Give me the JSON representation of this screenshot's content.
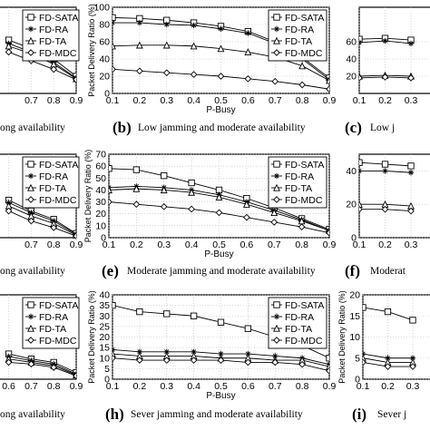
{
  "chart_data": [
    {
      "id": "a",
      "caption": "ong availability",
      "caption_letter": "",
      "type": "line",
      "ylabel": "",
      "xlabel": "",
      "ylim": [
        0,
        100
      ],
      "x": [
        0.6,
        0.7,
        0.8,
        0.9
      ],
      "xticks": [
        "",
        "0.7",
        "0.8",
        "0.9"
      ],
      "yticks": [],
      "legend": [
        "FD-SATA",
        "FD-RA",
        "FD-TA",
        "FD-MDC"
      ],
      "legend_partial": true,
      "series": [
        {
          "name": "FD-SATA",
          "marker": "square",
          "values": [
            62,
            52,
            40,
            20
          ]
        },
        {
          "name": "FD-RA",
          "marker": "star",
          "values": [
            58,
            48,
            36,
            18
          ]
        },
        {
          "name": "FD-TA",
          "marker": "triangle",
          "values": [
            55,
            46,
            34,
            17
          ]
        },
        {
          "name": "FD-MDC",
          "marker": "diamond",
          "values": [
            48,
            38,
            28,
            16
          ]
        }
      ]
    },
    {
      "id": "b",
      "caption": "Low jamming and moderate availability",
      "caption_letter": "(b)",
      "type": "line",
      "ylabel": "Packet Delivery Ratio (%)",
      "xlabel": "P-Busy",
      "ylim": [
        0,
        100
      ],
      "x": [
        0.1,
        0.2,
        0.3,
        0.4,
        0.5,
        0.6,
        0.7,
        0.8,
        0.9
      ],
      "xticks": [
        "0.1",
        "0.2",
        "0.3",
        "0.4",
        "0.5",
        "0.6",
        "0.7",
        "0.8",
        "0.9"
      ],
      "yticks": [
        "0",
        "20",
        "40",
        "60",
        "80",
        "100"
      ],
      "legend": [
        "FD-SATA",
        "FD-RA",
        "FD-TA",
        "FD-MDC"
      ],
      "series": [
        {
          "name": "FD-SATA",
          "marker": "square",
          "values": [
            88,
            87,
            85,
            82,
            78,
            72,
            60,
            42,
            18
          ]
        },
        {
          "name": "FD-RA",
          "marker": "star",
          "values": [
            82,
            82,
            80,
            79,
            75,
            70,
            58,
            40,
            16
          ]
        },
        {
          "name": "FD-TA",
          "marker": "triangle",
          "values": [
            55,
            56,
            56,
            55,
            52,
            48,
            42,
            32,
            15
          ]
        },
        {
          "name": "FD-MDC",
          "marker": "diamond",
          "values": [
            28,
            26,
            24,
            22,
            20,
            17,
            14,
            10,
            5
          ]
        }
      ]
    },
    {
      "id": "c",
      "caption": "Low j",
      "caption_letter": "(c)",
      "type": "line",
      "ylabel": "",
      "xlabel": "",
      "ylim": [
        0,
        100
      ],
      "x": [
        0.1,
        0.2,
        0.3
      ],
      "xticks": [
        "0.1",
        "0.2",
        "0.3"
      ],
      "yticks": [
        "20",
        "40",
        "60"
      ],
      "legend": [],
      "partial": true,
      "series": [
        {
          "name": "FD-SATA",
          "marker": "square",
          "values": [
            63,
            64,
            62
          ]
        },
        {
          "name": "FD-RA",
          "marker": "star",
          "values": [
            59,
            61,
            58
          ]
        },
        {
          "name": "FD-TA",
          "marker": "triangle",
          "values": [
            20,
            21,
            20
          ]
        },
        {
          "name": "FD-MDC",
          "marker": "diamond",
          "values": [
            18,
            19,
            18
          ]
        }
      ]
    },
    {
      "id": "d",
      "caption": "ong availability",
      "caption_letter": "",
      "type": "line",
      "ylabel": "",
      "xlabel": "",
      "ylim": [
        0,
        100
      ],
      "x": [
        0.6,
        0.7,
        0.8,
        0.9
      ],
      "xticks": [
        "",
        "0.7",
        "0.8",
        "0.9"
      ],
      "yticks": [],
      "legend": [
        "FD-SATA",
        "FD-RA",
        "FD-TA",
        "FD-MDC"
      ],
      "legend_partial": true,
      "series": [
        {
          "name": "FD-SATA",
          "marker": "square",
          "values": [
            45,
            32,
            22,
            5
          ]
        },
        {
          "name": "FD-RA",
          "marker": "star",
          "values": [
            42,
            30,
            20,
            4
          ]
        },
        {
          "name": "FD-TA",
          "marker": "triangle",
          "values": [
            38,
            26,
            17,
            3
          ]
        },
        {
          "name": "FD-MDC",
          "marker": "diamond",
          "values": [
            32,
            20,
            12,
            2
          ]
        }
      ]
    },
    {
      "id": "e",
      "caption": "Moderate jamming and moderate availability",
      "caption_letter": "(e)",
      "type": "line",
      "ylabel": "Packet Delivery Ratio (%)",
      "xlabel": "P-Busy",
      "ylim": [
        0,
        70
      ],
      "x": [
        0.1,
        0.2,
        0.3,
        0.4,
        0.5,
        0.6,
        0.7,
        0.8,
        0.9
      ],
      "xticks": [
        "0.1",
        "0.2",
        "0.3",
        "0.4",
        "0.5",
        "0.6",
        "0.7",
        "0.8",
        "0.9"
      ],
      "yticks": [
        "0",
        "10",
        "20",
        "30",
        "40",
        "50",
        "60",
        "70"
      ],
      "legend": [
        "FD-SATA",
        "FD-RA",
        "FD-TA",
        "FD-MDC"
      ],
      "series": [
        {
          "name": "FD-SATA",
          "marker": "square",
          "values": [
            58,
            57,
            52,
            46,
            40,
            33,
            25,
            16,
            7
          ]
        },
        {
          "name": "FD-RA",
          "marker": "star",
          "values": [
            42,
            43,
            42,
            40,
            36,
            30,
            23,
            15,
            6
          ]
        },
        {
          "name": "FD-TA",
          "marker": "triangle",
          "values": [
            40,
            41,
            40,
            38,
            34,
            28,
            21,
            14,
            6
          ]
        },
        {
          "name": "FD-MDC",
          "marker": "diamond",
          "values": [
            30,
            28,
            26,
            24,
            21,
            17,
            13,
            9,
            4
          ]
        }
      ]
    },
    {
      "id": "f",
      "caption": "Moderat",
      "caption_letter": "(f)",
      "type": "line",
      "ylabel": "",
      "xlabel": "",
      "ylim": [
        0,
        50
      ],
      "x": [
        0.1,
        0.2,
        0.3
      ],
      "xticks": [
        "0.1",
        "0.2",
        "0.3"
      ],
      "yticks": [
        "0",
        "20",
        "40"
      ],
      "legend": [],
      "partial": true,
      "series": [
        {
          "name": "FD-SATA",
          "marker": "square",
          "values": [
            45,
            44,
            43
          ]
        },
        {
          "name": "FD-RA",
          "marker": "star",
          "values": [
            40,
            40,
            39
          ]
        },
        {
          "name": "FD-TA",
          "marker": "triangle",
          "values": [
            20,
            20,
            19
          ]
        },
        {
          "name": "FD-MDC",
          "marker": "diamond",
          "values": [
            17,
            17,
            16
          ]
        }
      ]
    },
    {
      "id": "g",
      "caption": "ong availability",
      "caption_letter": "",
      "type": "line",
      "ylabel": "",
      "xlabel": "",
      "ylim": [
        0,
        100
      ],
      "x": [
        0.6,
        0.7,
        0.8,
        0.9
      ],
      "xticks": [
        "0.6",
        "0.7",
        "0.8",
        "0.9"
      ],
      "yticks": [],
      "legend": [
        "FD-SATA",
        "FD-RA",
        "FD-TA",
        "FD-MDC"
      ],
      "legend_partial": true,
      "series": [
        {
          "name": "FD-SATA",
          "marker": "square",
          "values": [
            30,
            24,
            20,
            8
          ]
        },
        {
          "name": "FD-RA",
          "marker": "star",
          "values": [
            27,
            22,
            18,
            6
          ]
        },
        {
          "name": "FD-TA",
          "marker": "triangle",
          "values": [
            24,
            20,
            16,
            5
          ]
        },
        {
          "name": "FD-MDC",
          "marker": "diamond",
          "values": [
            20,
            18,
            14,
            4
          ]
        }
      ]
    },
    {
      "id": "h",
      "caption": "Sever jamming and moderate availability",
      "caption_letter": "(h)",
      "type": "line",
      "ylabel": "Packet Delivery Ratio (%)",
      "xlabel": "P-Busy",
      "ylim": [
        0,
        40
      ],
      "x": [
        0.1,
        0.2,
        0.3,
        0.4,
        0.5,
        0.6,
        0.7,
        0.8,
        0.9
      ],
      "xticks": [
        "0.1",
        "0.2",
        "0.3",
        "0.4",
        "0.5",
        "0.6",
        "0.7",
        "0.8",
        "0.9"
      ],
      "yticks": [
        "0",
        "5",
        "10",
        "15",
        "20",
        "25",
        "30",
        "35",
        "40"
      ],
      "legend": [
        "FD-SATA",
        "FD-RA",
        "FD-TA",
        "FD-MDC"
      ],
      "series": [
        {
          "name": "FD-SATA",
          "marker": "square",
          "values": [
            35,
            32,
            31,
            30,
            27,
            24,
            20,
            16,
            10
          ]
        },
        {
          "name": "FD-RA",
          "marker": "star",
          "values": [
            14,
            13,
            13,
            13,
            12,
            12,
            11,
            10,
            7
          ]
        },
        {
          "name": "FD-TA",
          "marker": "triangle",
          "values": [
            12,
            11,
            11,
            11,
            10,
            10,
            9,
            9,
            6
          ]
        },
        {
          "name": "FD-MDC",
          "marker": "diamond",
          "values": [
            10,
            9,
            9,
            9,
            9,
            8,
            8,
            7,
            4
          ]
        }
      ]
    },
    {
      "id": "i",
      "caption": "Sever j",
      "caption_letter": "(i)",
      "type": "line",
      "ylabel": "Packet Delivery Ratio (%)",
      "xlabel": "",
      "ylim": [
        0,
        20
      ],
      "x": [
        0.1,
        0.2,
        0.3
      ],
      "xticks": [
        "0.1",
        "0.2",
        "0.3"
      ],
      "yticks": [
        "0",
        "5",
        "10",
        "15",
        "20"
      ],
      "legend": [],
      "partial": true,
      "series": [
        {
          "name": "FD-SATA",
          "marker": "square",
          "values": [
            17,
            16,
            14
          ]
        },
        {
          "name": "FD-RA",
          "marker": "star",
          "values": [
            6,
            5,
            5
          ]
        },
        {
          "name": "FD-TA",
          "marker": "triangle",
          "values": [
            5,
            4,
            4
          ]
        },
        {
          "name": "FD-MDC",
          "marker": "diamond",
          "values": [
            4,
            3,
            3
          ]
        }
      ]
    }
  ]
}
